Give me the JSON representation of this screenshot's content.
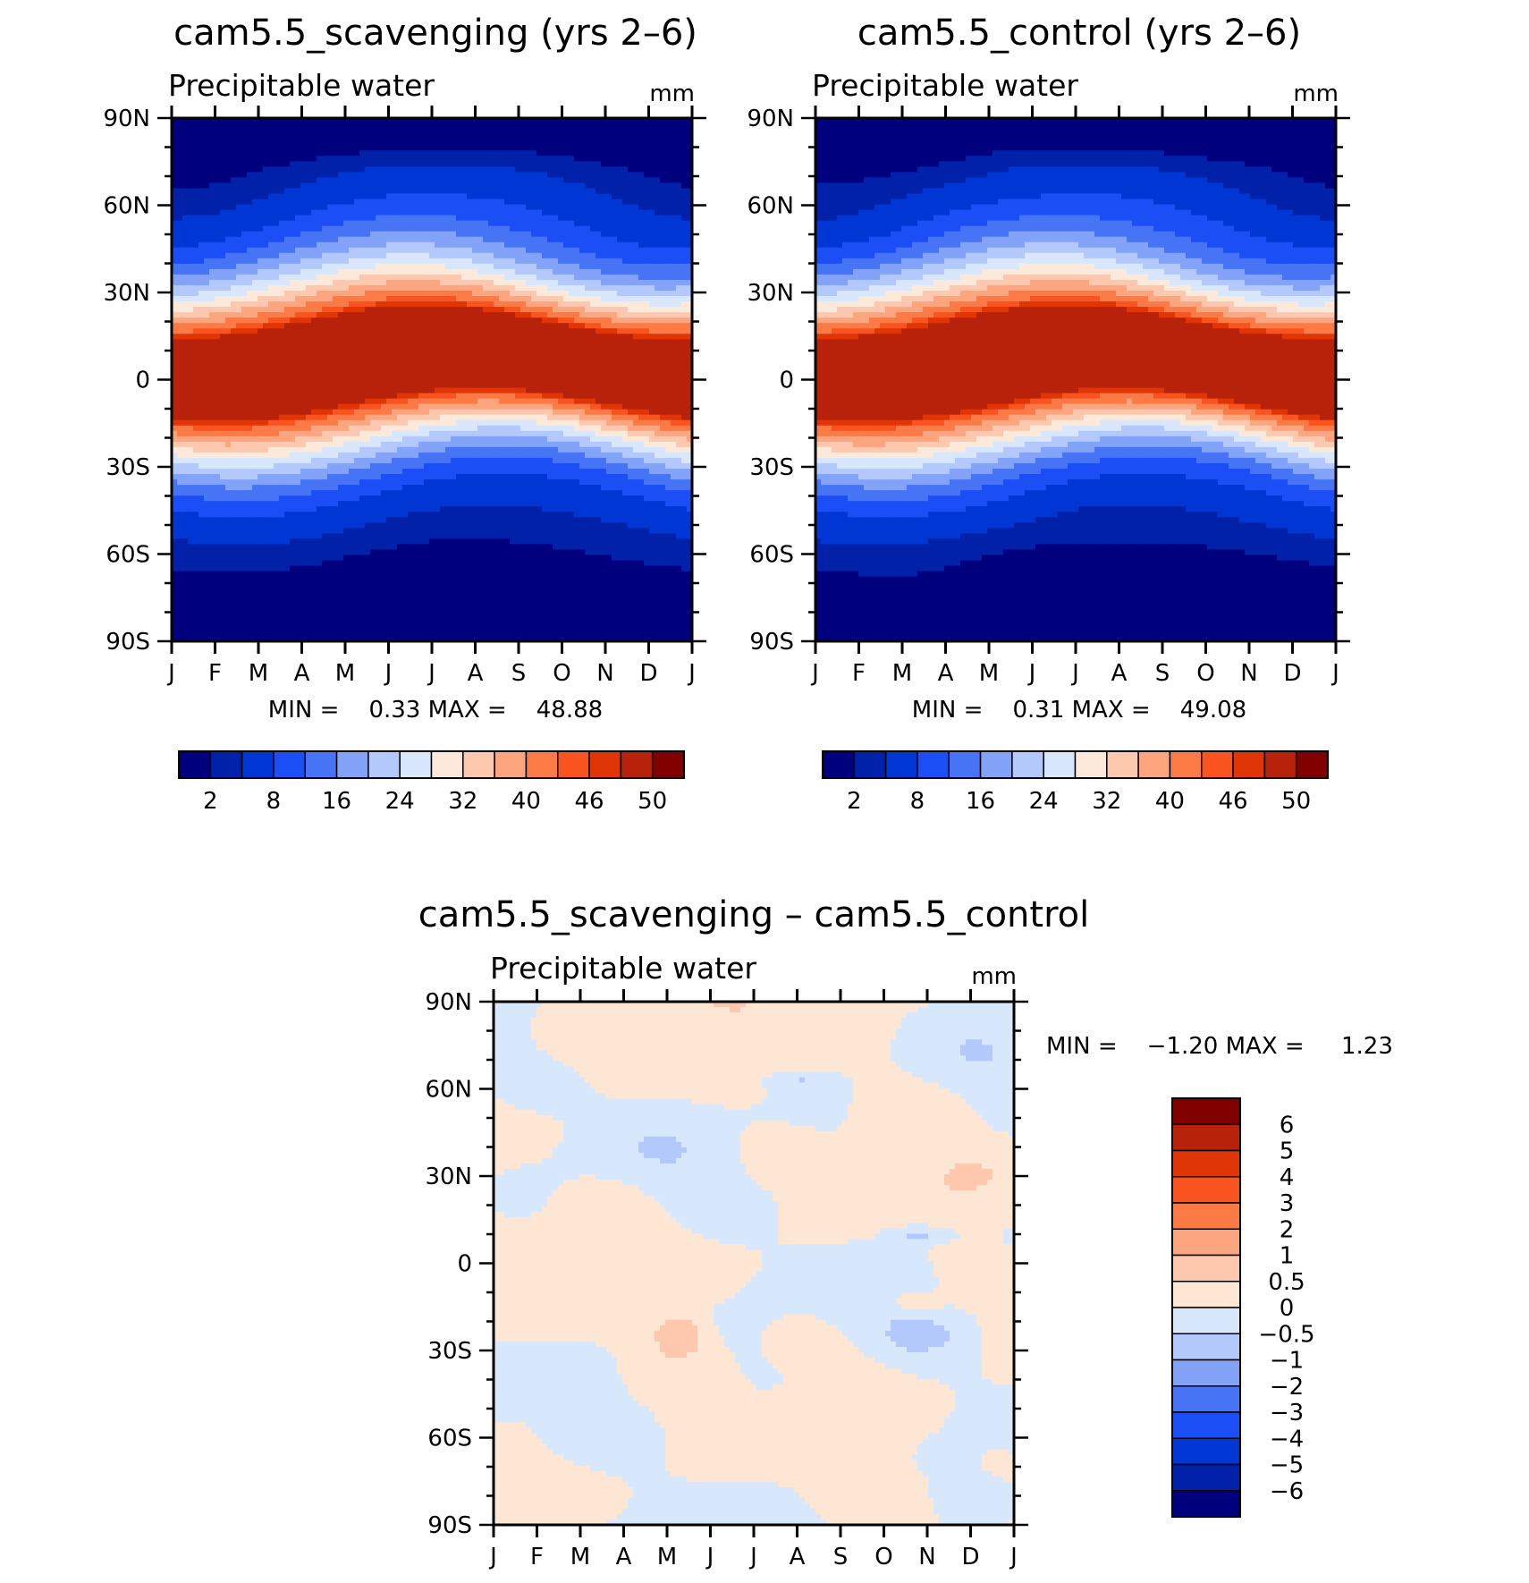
{
  "chart_data": [
    {
      "type": "heatmap",
      "title": "cam5.5_scavenging (yrs 2–6)",
      "subtitle": "Precipitable water",
      "units": "mm",
      "x_tick_labels": [
        "J",
        "F",
        "M",
        "A",
        "M",
        "J",
        "J",
        "A",
        "S",
        "O",
        "N",
        "D",
        "J"
      ],
      "y_tick_labels": [
        "90N",
        "60N",
        "30N",
        "0",
        "30S",
        "60S",
        "90S"
      ],
      "y_range_deg": [
        -90,
        90
      ],
      "stats": "MIN =    0.33 MAX =    48.88",
      "min": 0.33,
      "max": 48.88,
      "colorbar": {
        "orientation": "horizontal",
        "levels": [
          2,
          4,
          8,
          12,
          16,
          20,
          24,
          28,
          32,
          36,
          40,
          44,
          46,
          48,
          50
        ],
        "labels": [
          "2",
          "8",
          "16",
          "24",
          "32",
          "40",
          "46",
          "50"
        ]
      }
    },
    {
      "type": "heatmap",
      "title": "cam5.5_control (yrs 2–6)",
      "subtitle": "Precipitable water",
      "units": "mm",
      "x_tick_labels": [
        "J",
        "F",
        "M",
        "A",
        "M",
        "J",
        "J",
        "A",
        "S",
        "O",
        "N",
        "D",
        "J"
      ],
      "y_tick_labels": [
        "90N",
        "60N",
        "30N",
        "0",
        "30S",
        "60S",
        "90S"
      ],
      "y_range_deg": [
        -90,
        90
      ],
      "stats": "MIN =    0.31 MAX =    49.08",
      "min": 0.31,
      "max": 49.08,
      "colorbar": {
        "orientation": "horizontal",
        "levels": [
          2,
          4,
          8,
          12,
          16,
          20,
          24,
          28,
          32,
          36,
          40,
          44,
          46,
          48,
          50
        ],
        "labels": [
          "2",
          "8",
          "16",
          "24",
          "32",
          "40",
          "46",
          "50"
        ]
      }
    },
    {
      "type": "heatmap",
      "title": "cam5.5_scavenging – cam5.5_control",
      "subtitle": "Precipitable water",
      "units": "mm",
      "x_tick_labels": [
        "J",
        "F",
        "M",
        "A",
        "M",
        "J",
        "J",
        "A",
        "S",
        "O",
        "N",
        "D",
        "J"
      ],
      "y_tick_labels": [
        "90N",
        "60N",
        "30N",
        "0",
        "30S",
        "60S",
        "90S"
      ],
      "y_range_deg": [
        -90,
        90
      ],
      "stats": "MIN =    −1.20 MAX =     1.23",
      "min": -1.2,
      "max": 1.23,
      "colorbar": {
        "orientation": "vertical",
        "labels": [
          "6",
          "5",
          "4",
          "3",
          "2",
          "1",
          "0.5",
          "0",
          "−0.5",
          "−1",
          "−2",
          "−3",
          "−4",
          "−5",
          "−6"
        ]
      }
    }
  ],
  "colors": {
    "abs_palette": [
      "#00007f",
      "#0021a8",
      "#0036d3",
      "#1b4ef4",
      "#4774f5",
      "#83a3f8",
      "#b4c9fb",
      "#d8e7fc",
      "#fde9d9",
      "#fdc8ad",
      "#fca57f",
      "#fc7a45",
      "#f9531f",
      "#e03507",
      "#b8220a",
      "#800000"
    ],
    "diff_palette": [
      "#800000",
      "#b8220a",
      "#e03507",
      "#f9531f",
      "#fc7a45",
      "#fca57f",
      "#fdc8ad",
      "#fde6d3",
      "#d8e8fc",
      "#b4c9fb",
      "#83a3f8",
      "#4774f5",
      "#1b4ef4",
      "#0036d3",
      "#0021a8",
      "#00007f"
    ]
  }
}
